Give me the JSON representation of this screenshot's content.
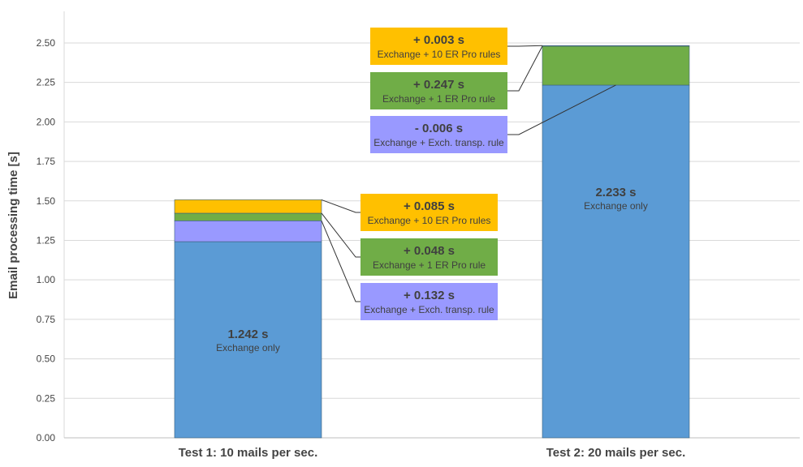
{
  "chart_data": {
    "type": "bar",
    "stacked": true,
    "ylabel": "Email processing time [s]",
    "xlabel": "",
    "ylim": [
      0,
      2.5
    ],
    "yticks": [
      "0.00",
      "0.25",
      "0.50",
      "0.75",
      "1.00",
      "1.25",
      "1.50",
      "1.75",
      "2.00",
      "2.25",
      "2.50"
    ],
    "grid": true,
    "categories": [
      "Test 1: 10 mails per sec.",
      "Test 2: 20 mails per sec."
    ],
    "series": [
      {
        "name": "Exchange only",
        "color": "#5b9bd5",
        "values": [
          1.242,
          2.233
        ]
      },
      {
        "name": "Exchange + Exch. transp. rule",
        "color": "#9999ff",
        "values": [
          0.132,
          -0.006
        ]
      },
      {
        "name": "Exchange + 1 ER Pro rule",
        "color": "#70ad47",
        "values": [
          0.048,
          0.247
        ]
      },
      {
        "name": "Exchange + 10 ER Pro rules",
        "color": "#ffc000",
        "values": [
          0.085,
          0.003
        ]
      }
    ],
    "bar_labels": [
      {
        "value": "1.242 s",
        "label": "Exchange only"
      },
      {
        "value": "2.233 s",
        "label": "Exchange only"
      }
    ],
    "annotations": [
      [
        {
          "value": "+ 0.085 s",
          "label": "Exchange + 10 ER Pro rules",
          "color": "#ffc000"
        },
        {
          "value": "+ 0.048 s",
          "label": "Exchange + 1 ER Pro rule",
          "color": "#70ad47"
        },
        {
          "value": "+ 0.132 s",
          "label": "Exchange + Exch. transp. rule",
          "color": "#9999ff"
        }
      ],
      [
        {
          "value": "+ 0.003 s",
          "label": "Exchange + 10 ER Pro rules",
          "color": "#ffc000"
        },
        {
          "value": "+ 0.247 s",
          "label": "Exchange + 1 ER Pro rule",
          "color": "#70ad47"
        },
        {
          "value": "- 0.006 s",
          "label": "Exchange + Exch. transp. rule",
          "color": "#9999ff"
        }
      ]
    ]
  }
}
